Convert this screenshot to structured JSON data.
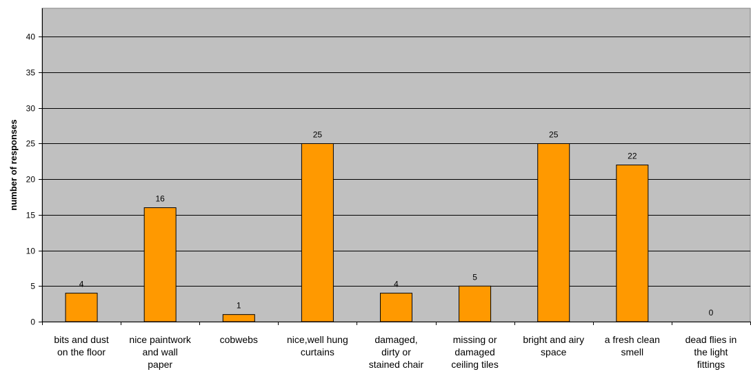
{
  "chart_data": {
    "type": "bar",
    "title": "",
    "xlabel": "",
    "ylabel": "number of responses",
    "ylim": [
      0,
      44
    ],
    "yticks": [
      0,
      5,
      10,
      15,
      20,
      25,
      30,
      35,
      40
    ],
    "grid": true,
    "legend": "none",
    "categories": [
      [
        "bits and dust",
        "on the floor"
      ],
      [
        "nice paintwork",
        "and wall",
        "paper"
      ],
      [
        "cobwebs"
      ],
      [
        "nice,well hung",
        "curtains"
      ],
      [
        "damaged,",
        "dirty or",
        "stained chair"
      ],
      [
        "missing or",
        "damaged",
        "ceiling tiles"
      ],
      [
        "bright and airy",
        "space"
      ],
      [
        "a fresh clean",
        "smell"
      ],
      [
        "dead flies in",
        "the light",
        "fittings"
      ]
    ],
    "values": [
      4,
      16,
      1,
      25,
      4,
      5,
      25,
      22,
      0
    ],
    "colors": {
      "plot_bg": "#c0c0c0",
      "bar_fill": "#ff9900",
      "bar_stroke": "#000000",
      "grid": "#000000"
    }
  }
}
